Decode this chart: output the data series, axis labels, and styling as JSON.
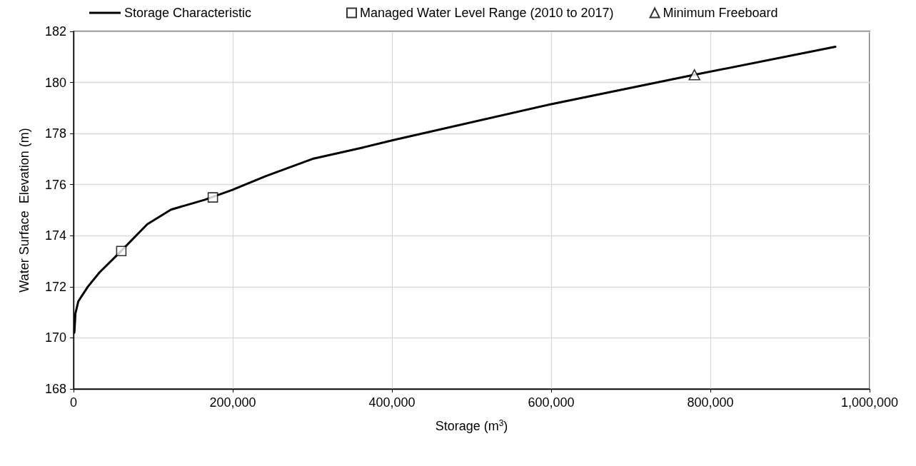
{
  "chart_data": {
    "type": "line",
    "xlabel": "Storage (m$^{3}$)",
    "ylabel": "Water Surface  Elevation (m)",
    "xlim": [
      0,
      1000000
    ],
    "xticks": [
      {
        "value": 0,
        "label": "0"
      },
      {
        "value": 200000,
        "label": "200,000"
      },
      {
        "value": 400000,
        "label": "400,000"
      },
      {
        "value": 600000,
        "label": "600,000"
      },
      {
        "value": 800000,
        "label": "800,000"
      },
      {
        "value": 1000000,
        "label": "1,000,000"
      }
    ],
    "ylim": [
      168,
      182
    ],
    "yticks": [
      168,
      170,
      172,
      174,
      176,
      178,
      180,
      182
    ],
    "grid": true,
    "legend": "top",
    "series": [
      {
        "name": "Storage Characteristic",
        "color": "#000000",
        "marker": "none",
        "line_style": "solid",
        "x": [
          1000,
          2400,
          6000,
          17900,
          32800,
          55000,
          92600,
          122400,
          165000,
          200000,
          241900,
          301600,
          360600,
          400000,
          600000,
          780000,
          957000
        ],
        "values": [
          170.2,
          170.96,
          171.43,
          172.0,
          172.57,
          173.25,
          174.45,
          175.02,
          175.41,
          175.8,
          176.34,
          177.02,
          177.43,
          177.73,
          179.15,
          180.3,
          181.4
        ]
      },
      {
        "name": "Managed Water Level Range (2010 to 2017)",
        "type": "scatter",
        "color": "#000000",
        "marker": "square",
        "x": [
          60000,
          175000
        ],
        "values": [
          173.4,
          175.5
        ]
      },
      {
        "name": "Minimum Freeboard",
        "type": "scatter",
        "color": "#000000",
        "marker": "triangle",
        "x": [
          780000
        ],
        "values": [
          180.3
        ]
      }
    ]
  }
}
